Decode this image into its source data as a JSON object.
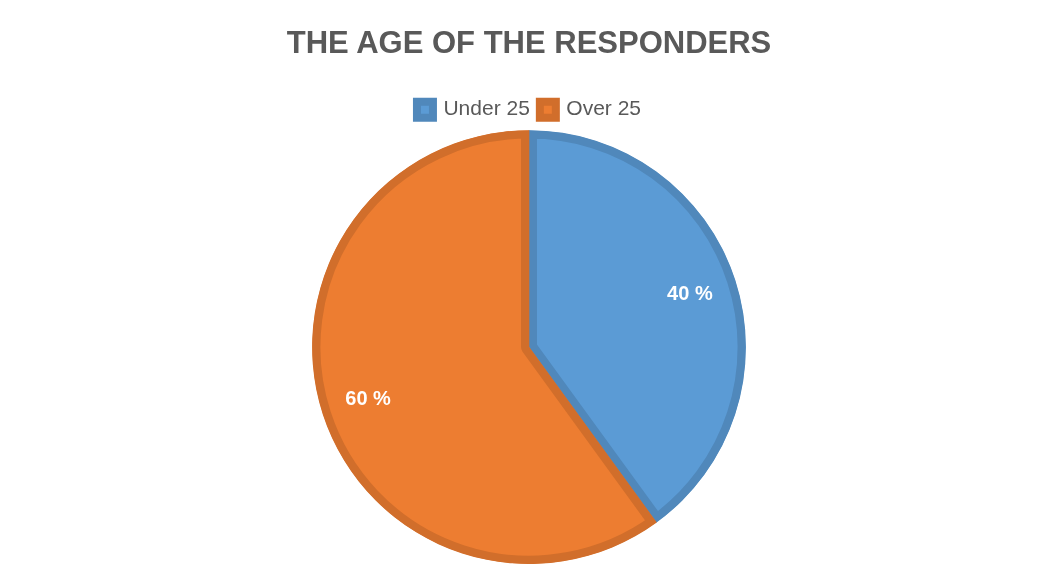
{
  "chart_data": {
    "type": "pie",
    "title": "THE AGE OF THE RESPONDERS",
    "categories": [
      "Under 25",
      "Over 25"
    ],
    "values": [
      40,
      60
    ],
    "colors": [
      "#5b9bd5",
      "#ed7d31"
    ],
    "value_labels": [
      "40 %",
      "60 %"
    ],
    "legend": "top"
  }
}
